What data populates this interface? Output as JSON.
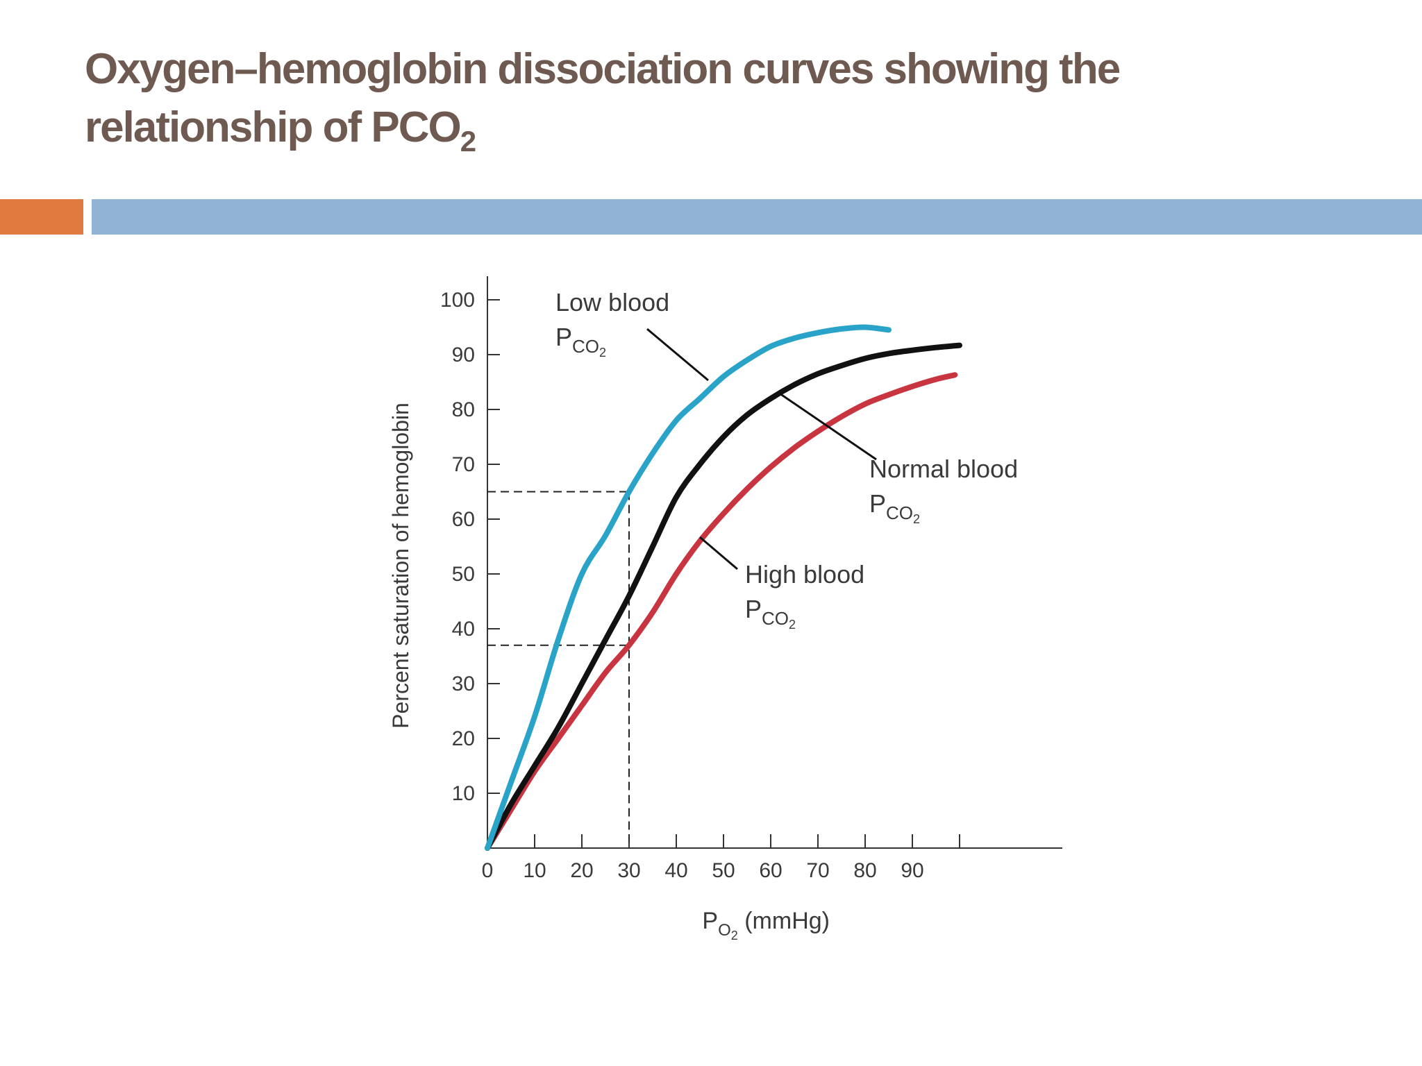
{
  "slide": {
    "title_main": "Oxygen–hemoglobin dissociation curves showing the relationship of PCO",
    "title_sub": "2"
  },
  "colors": {
    "title": "#6e5a50",
    "accent_orange": "#e07a3f",
    "accent_blue": "#92b4d4",
    "low_curve": "#2aa3c9",
    "normal_curve": "#111111",
    "high_curve": "#c8343f"
  },
  "chart_data": {
    "type": "line",
    "xlabel": "P",
    "xlabel_sub": "O",
    "xlabel_sub2": "2",
    "xlabel_unit": "(mmHg)",
    "ylabel": "Percent saturation of hemoglobin",
    "xlim": [
      0,
      120
    ],
    "ylim": [
      0,
      100
    ],
    "x_ticks": [
      0,
      10,
      20,
      30,
      40,
      50,
      60,
      70,
      80,
      90
    ],
    "x_tick_labels": [
      "0",
      "10",
      "20",
      "30",
      "40",
      "50",
      "60",
      "70",
      "80",
      "90"
    ],
    "y_ticks": [
      10,
      20,
      30,
      40,
      50,
      60,
      70,
      80,
      90,
      100
    ],
    "y_tick_labels": [
      "10",
      "20",
      "30",
      "40",
      "50",
      "60",
      "70",
      "80",
      "90",
      "100"
    ],
    "grid": false,
    "series": [
      {
        "name": "Low blood PCO2",
        "label_lines": [
          "Low blood",
          "P",
          "CO",
          "2"
        ],
        "color": "#2aa3c9",
        "x": [
          0,
          5,
          10,
          15,
          20,
          25,
          30,
          35,
          40,
          45,
          50,
          55,
          60,
          65,
          70,
          75,
          80,
          85
        ],
        "y": [
          0,
          12,
          24,
          38,
          50,
          57,
          65,
          72,
          78,
          82,
          86,
          89,
          91.5,
          93,
          94,
          94.7,
          95,
          94.5
        ]
      },
      {
        "name": "Normal blood PCO2",
        "label_lines": [
          "Normal blood",
          "P",
          "CO",
          "2"
        ],
        "color": "#111111",
        "x": [
          0,
          5,
          10,
          15,
          20,
          25,
          30,
          35,
          40,
          45,
          50,
          55,
          60,
          65,
          70,
          75,
          80,
          85,
          90,
          95,
          100
        ],
        "y": [
          0,
          8,
          15,
          22,
          30,
          38,
          46,
          55,
          64,
          70,
          75,
          79,
          82,
          84.5,
          86.5,
          88,
          89.3,
          90.2,
          90.8,
          91.3,
          91.7
        ]
      },
      {
        "name": "High blood PCO2",
        "label_lines": [
          "High blood",
          "P",
          "CO",
          "2"
        ],
        "color": "#c8343f",
        "x": [
          0,
          5,
          10,
          15,
          20,
          25,
          30,
          35,
          40,
          45,
          50,
          55,
          60,
          65,
          70,
          75,
          80,
          85,
          90,
          95,
          99
        ],
        "y": [
          0,
          7,
          14,
          20,
          26,
          32,
          37,
          43,
          50,
          56,
          61,
          65.5,
          69.5,
          73,
          76,
          78.7,
          81,
          82.7,
          84.2,
          85.5,
          86.3
        ]
      }
    ],
    "reference_lines": [
      {
        "x": 30,
        "y": 65
      },
      {
        "x": 30,
        "y": 37
      }
    ]
  }
}
